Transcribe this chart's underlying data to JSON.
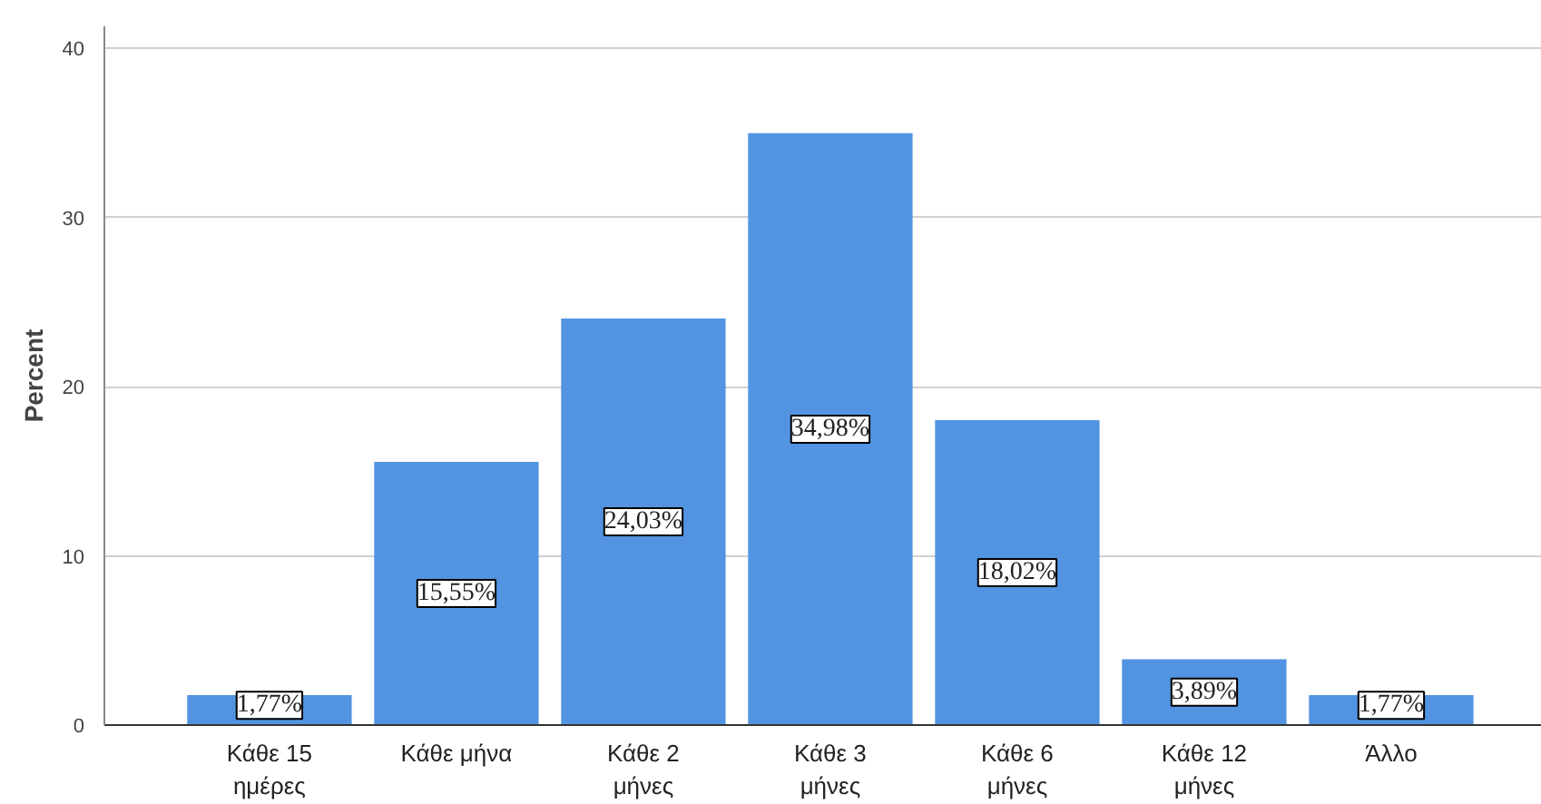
{
  "chart_data": {
    "type": "bar",
    "ylabel": "Percent",
    "categories": [
      "Κάθε 15\nημέρες",
      "Κάθε μήνα",
      "Κάθε 2\nμήνες",
      "Κάθε 3\nμήνες",
      "Κάθε 6\nμήνες",
      "Κάθε 12\nμήνες",
      "Άλλο"
    ],
    "values": [
      1.77,
      15.55,
      24.03,
      34.98,
      18.02,
      3.89,
      1.77
    ],
    "value_labels": [
      "1,77%",
      "15,55%",
      "24,03%",
      "34,98%",
      "18,02%",
      "3,89%",
      "1,77%"
    ],
    "color": "#5294e2",
    "ylim": [
      0,
      41.3
    ],
    "yticks": [
      0,
      10,
      20,
      30,
      40
    ],
    "grid": "y"
  }
}
